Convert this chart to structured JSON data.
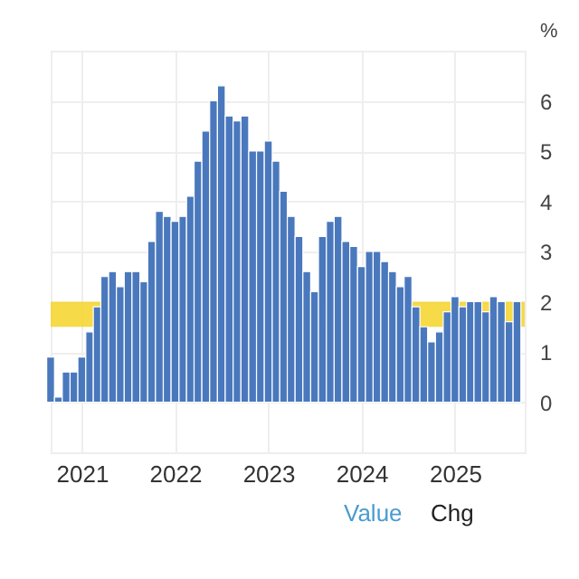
{
  "chart_data": {
    "type": "bar",
    "ylabel": "%",
    "x": [
      "2020-09",
      "2020-10",
      "2020-11",
      "2020-12",
      "2021-01",
      "2021-02",
      "2021-03",
      "2021-04",
      "2021-05",
      "2021-06",
      "2021-07",
      "2021-08",
      "2021-09",
      "2021-10",
      "2021-11",
      "2021-12",
      "2022-01",
      "2022-02",
      "2022-03",
      "2022-04",
      "2022-05",
      "2022-06",
      "2022-07",
      "2022-08",
      "2022-09",
      "2022-10",
      "2022-11",
      "2022-12",
      "2023-01",
      "2023-02",
      "2023-03",
      "2023-04",
      "2023-05",
      "2023-06",
      "2023-07",
      "2023-08",
      "2023-09",
      "2023-10",
      "2023-11",
      "2023-12",
      "2024-01",
      "2024-02",
      "2024-03",
      "2024-04",
      "2024-05",
      "2024-06",
      "2024-07",
      "2024-08",
      "2024-09",
      "2024-10",
      "2024-11",
      "2024-12",
      "2025-01",
      "2025-02",
      "2025-03",
      "2025-04",
      "2025-05",
      "2025-06",
      "2025-07",
      "2025-08",
      "2025-09"
    ],
    "values": [
      0.9,
      0.1,
      0.6,
      0.6,
      0.9,
      1.4,
      1.9,
      2.5,
      2.6,
      2.3,
      2.6,
      2.6,
      2.4,
      3.2,
      3.8,
      3.7,
      3.6,
      3.7,
      4.1,
      4.8,
      5.4,
      6.0,
      6.3,
      5.7,
      5.6,
      5.7,
      5.0,
      5.0,
      5.2,
      4.8,
      4.2,
      3.7,
      3.3,
      2.6,
      2.2,
      3.3,
      3.6,
      3.7,
      3.2,
      3.1,
      2.7,
      3.0,
      3.0,
      2.8,
      2.6,
      2.3,
      2.5,
      1.9,
      1.5,
      1.2,
      1.4,
      1.8,
      2.1,
      1.9,
      2.0,
      2.0,
      1.8,
      2.1,
      2.0,
      1.6,
      2.0
    ],
    "color": "#4a78bd",
    "xlim": [
      "2020-09",
      "2025-10"
    ],
    "xticks": [
      "2021",
      "2022",
      "2023",
      "2024",
      "2025"
    ],
    "ylim": [
      -1,
      7
    ],
    "yticks": [
      0,
      1,
      2,
      3,
      4,
      5,
      6
    ],
    "grid": true,
    "bands": [
      {
        "axis": "y",
        "from": 1.5,
        "to": 2.0,
        "color": "#f5d328"
      }
    ],
    "annotations": [
      "Value",
      "Chg"
    ]
  }
}
